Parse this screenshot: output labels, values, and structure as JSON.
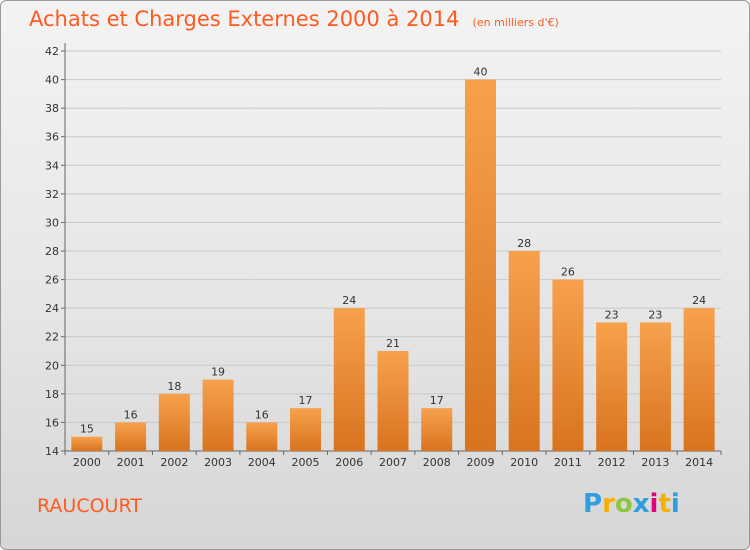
{
  "title": "Achats et Charges Externes 2000 à 2014",
  "unit": "(en milliers d'€)",
  "commune": "RAUCOURT",
  "logo": {
    "text": "Proxiti",
    "letters": [
      "P",
      "r",
      "o",
      "x",
      "i",
      "t",
      "i"
    ],
    "colors": [
      "#2f9de0",
      "#f7b000",
      "#8cc63f",
      "#2f9de0",
      "#e2007a",
      "#f7b000",
      "#2f9de0"
    ]
  },
  "colors": {
    "title": "#ff5a1f",
    "bar_top": "#f7a14d",
    "bar_bottom": "#d9731e",
    "grid": "#c8c8c8"
  },
  "chart_data": {
    "type": "bar",
    "title": "Achats et Charges Externes 2000 à 2014",
    "subtitle": "(en milliers d'€)",
    "categories": [
      "2000",
      "2001",
      "2002",
      "2003",
      "2004",
      "2005",
      "2006",
      "2007",
      "2008",
      "2009",
      "2010",
      "2011",
      "2012",
      "2013",
      "2014"
    ],
    "values": [
      15,
      16,
      18,
      19,
      16,
      17,
      24,
      21,
      17,
      40,
      28,
      26,
      23,
      23,
      24
    ],
    "ylim": [
      14,
      42
    ],
    "yticks": [
      14,
      16,
      18,
      20,
      22,
      24,
      26,
      28,
      30,
      32,
      34,
      36,
      38,
      40,
      42
    ],
    "grid": true
  }
}
